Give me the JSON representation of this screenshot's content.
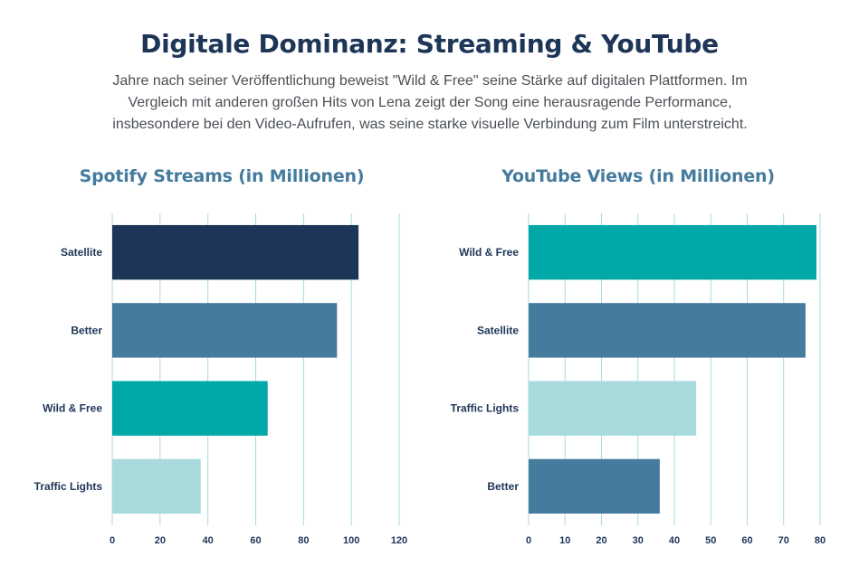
{
  "page": {
    "title": "Digitale Dominanz: Streaming & YouTube",
    "intro": "Jahre nach seiner Veröffentlichung beweist \"Wild & Free\" seine Stärke auf digitalen Plattformen. Im Vergleich mit anderen großen Hits von Lena zeigt der Song eine herausragende Performance, insbesondere bei den Video-Aufrufen, was seine starke visuelle Verbindung zum Film unterstreicht."
  },
  "colors": {
    "title": "#1d3557",
    "chart_title": "#457b9d",
    "grid": "#a8dadc"
  },
  "chart_data": [
    {
      "id": "spotify",
      "type": "bar",
      "orientation": "horizontal",
      "title": "Spotify Streams (in Millionen)",
      "categories": [
        "Satellite",
        "Better",
        "Wild & Free",
        "Traffic Lights"
      ],
      "values": [
        103,
        94,
        65,
        37
      ],
      "colors": [
        "#1d3557",
        "#457b9d",
        "#00a8a8",
        "#a8dadc"
      ],
      "xlim": [
        0,
        120
      ],
      "xticks": [
        0,
        20,
        40,
        60,
        80,
        100,
        120
      ],
      "grid": true,
      "legend": "none"
    },
    {
      "id": "youtube",
      "type": "bar",
      "orientation": "horizontal",
      "title": "YouTube Views (in Millionen)",
      "categories": [
        "Wild & Free",
        "Satellite",
        "Traffic Lights",
        "Better"
      ],
      "values": [
        79,
        76,
        46,
        36
      ],
      "colors": [
        "#00a8a8",
        "#457b9d",
        "#a8dadc",
        "#457b9d"
      ],
      "xlim": [
        0,
        80
      ],
      "xticks": [
        0,
        10,
        20,
        30,
        40,
        50,
        60,
        70,
        80
      ],
      "grid": true,
      "legend": "none"
    }
  ]
}
